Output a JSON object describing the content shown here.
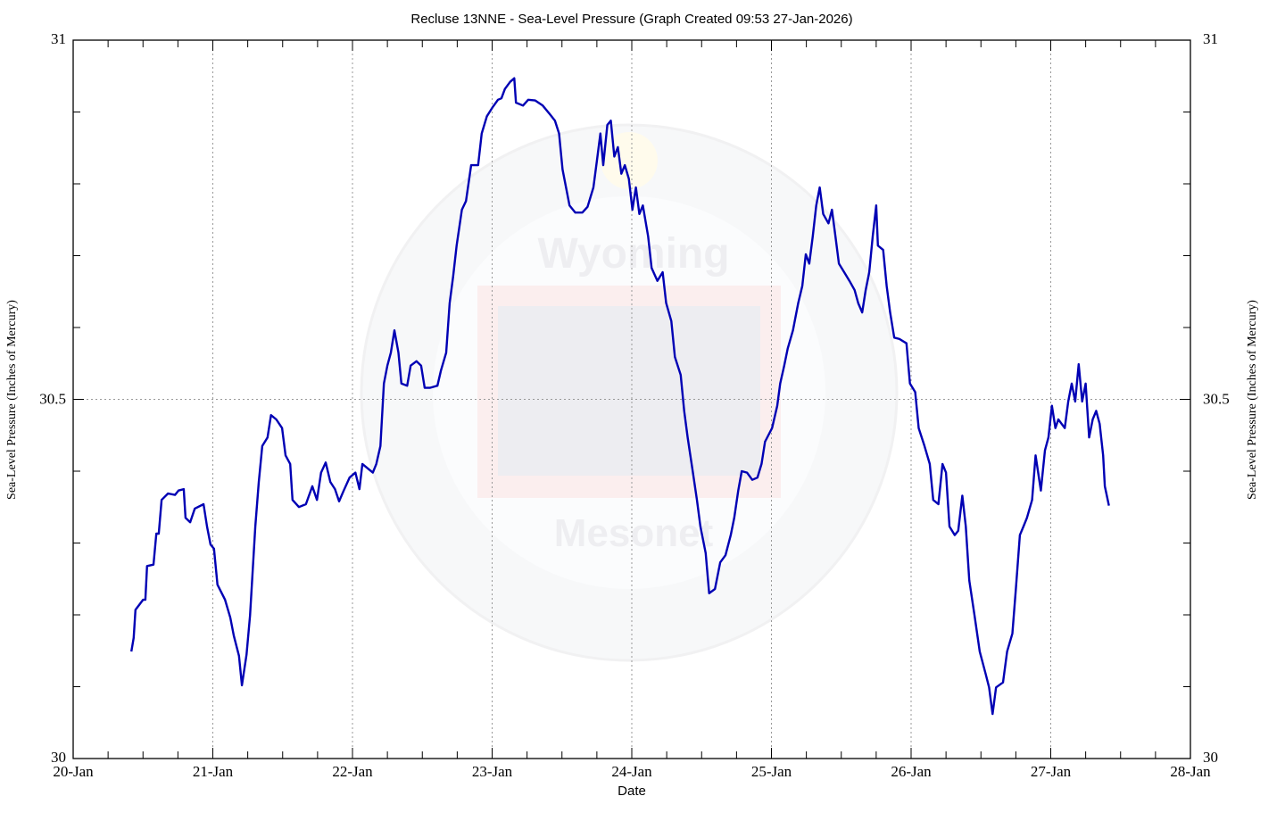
{
  "chart_data": {
    "type": "line",
    "title": "Recluse 13NNE - Sea-Level Pressure (Graph Created 09:53 27-Jan-2026)",
    "xlabel": "Date",
    "ylabel": "Sea-Level Pressure (Inches of Mercury)",
    "ylabel_right": "Sea-Level Pressure (Inches of Mercury)",
    "x_unit": "hours since 20-Jan 00:00",
    "xlim": [
      0,
      192
    ],
    "ylim": [
      30,
      31
    ],
    "x_ticks": [
      {
        "hour": 0,
        "label": "20-Jan"
      },
      {
        "hour": 24,
        "label": "21-Jan"
      },
      {
        "hour": 48,
        "label": "22-Jan"
      },
      {
        "hour": 72,
        "label": "23-Jan"
      },
      {
        "hour": 96,
        "label": "24-Jan"
      },
      {
        "hour": 120,
        "label": "25-Jan"
      },
      {
        "hour": 144,
        "label": "26-Jan"
      },
      {
        "hour": 168,
        "label": "27-Jan"
      },
      {
        "hour": 192,
        "label": "28-Jan"
      }
    ],
    "y_ticks": [
      {
        "value": 30,
        "label": "30"
      },
      {
        "value": 30.5,
        "label": "30.5"
      },
      {
        "value": 31,
        "label": "31"
      }
    ],
    "grid": "vertical at each day, horizontal at 30.5 (dotted)",
    "watermark": "Wyoming Mesonet",
    "series": [
      {
        "name": "Sea-Level Pressure",
        "color": "#0000b4",
        "points": [
          [
            10.0,
            30.149
          ],
          [
            10.4,
            30.168
          ],
          [
            10.7,
            30.207
          ],
          [
            12.0,
            30.221
          ],
          [
            12.4,
            30.221
          ],
          [
            12.7,
            30.268
          ],
          [
            13.8,
            30.27
          ],
          [
            14.3,
            30.313
          ],
          [
            14.7,
            30.313
          ],
          [
            15.2,
            30.36
          ],
          [
            16.3,
            30.369
          ],
          [
            17.5,
            30.367
          ],
          [
            18.1,
            30.373
          ],
          [
            19.0,
            30.375
          ],
          [
            19.3,
            30.335
          ],
          [
            20.1,
            30.329
          ],
          [
            20.9,
            30.348
          ],
          [
            22.4,
            30.354
          ],
          [
            23.0,
            30.323
          ],
          [
            23.6,
            30.298
          ],
          [
            24.2,
            30.292
          ],
          [
            24.8,
            30.242
          ],
          [
            26.1,
            30.221
          ],
          [
            27.0,
            30.196
          ],
          [
            27.6,
            30.171
          ],
          [
            28.5,
            30.143
          ],
          [
            29.0,
            30.102
          ],
          [
            29.8,
            30.145
          ],
          [
            30.4,
            30.199
          ],
          [
            31.3,
            30.323
          ],
          [
            31.9,
            30.385
          ],
          [
            32.5,
            30.435
          ],
          [
            33.4,
            30.447
          ],
          [
            34.0,
            30.478
          ],
          [
            34.9,
            30.472
          ],
          [
            35.9,
            30.46
          ],
          [
            36.5,
            30.422
          ],
          [
            37.3,
            30.41
          ],
          [
            37.7,
            30.36
          ],
          [
            38.8,
            30.35
          ],
          [
            40.0,
            30.354
          ],
          [
            41.1,
            30.379
          ],
          [
            41.9,
            30.36
          ],
          [
            42.6,
            30.398
          ],
          [
            43.4,
            30.412
          ],
          [
            44.2,
            30.385
          ],
          [
            45.0,
            30.375
          ],
          [
            45.7,
            30.358
          ],
          [
            46.5,
            30.373
          ],
          [
            47.5,
            30.391
          ],
          [
            48.5,
            30.398
          ],
          [
            49.2,
            30.375
          ],
          [
            49.7,
            30.41
          ],
          [
            50.6,
            30.404
          ],
          [
            51.5,
            30.398
          ],
          [
            52.1,
            30.41
          ],
          [
            52.8,
            30.435
          ],
          [
            53.4,
            30.522
          ],
          [
            54.0,
            30.547
          ],
          [
            54.6,
            30.565
          ],
          [
            55.2,
            30.596
          ],
          [
            55.9,
            30.565
          ],
          [
            56.4,
            30.522
          ],
          [
            57.4,
            30.519
          ],
          [
            58.0,
            30.547
          ],
          [
            59.0,
            30.553
          ],
          [
            59.8,
            30.547
          ],
          [
            60.4,
            30.516
          ],
          [
            61.3,
            30.516
          ],
          [
            62.6,
            30.519
          ],
          [
            63.2,
            30.54
          ],
          [
            64.1,
            30.565
          ],
          [
            64.7,
            30.634
          ],
          [
            65.3,
            30.671
          ],
          [
            65.9,
            30.714
          ],
          [
            66.8,
            30.764
          ],
          [
            67.5,
            30.776
          ],
          [
            68.4,
            30.826
          ],
          [
            69.6,
            30.826
          ],
          [
            70.2,
            30.87
          ],
          [
            71.1,
            30.894
          ],
          [
            72.1,
            30.907
          ],
          [
            73.0,
            30.917
          ],
          [
            73.6,
            30.919
          ],
          [
            74.2,
            30.932
          ],
          [
            75.1,
            30.942
          ],
          [
            75.8,
            30.947
          ],
          [
            76.1,
            30.913
          ],
          [
            77.3,
            30.909
          ],
          [
            78.2,
            30.917
          ],
          [
            79.4,
            30.916
          ],
          [
            80.7,
            30.909
          ],
          [
            81.9,
            30.897
          ],
          [
            82.8,
            30.888
          ],
          [
            83.5,
            30.87
          ],
          [
            84.1,
            30.82
          ],
          [
            84.7,
            30.795
          ],
          [
            85.3,
            30.77
          ],
          [
            86.3,
            30.76
          ],
          [
            87.5,
            30.76
          ],
          [
            88.4,
            30.768
          ],
          [
            89.4,
            30.795
          ],
          [
            90.0,
            30.832
          ],
          [
            90.6,
            30.87
          ],
          [
            91.1,
            30.826
          ],
          [
            91.8,
            30.882
          ],
          [
            92.4,
            30.888
          ],
          [
            93.0,
            30.838
          ],
          [
            93.6,
            30.851
          ],
          [
            94.2,
            30.814
          ],
          [
            94.8,
            30.826
          ],
          [
            95.5,
            30.807
          ],
          [
            96.1,
            30.764
          ],
          [
            96.7,
            30.795
          ],
          [
            97.3,
            30.758
          ],
          [
            97.9,
            30.77
          ],
          [
            98.8,
            30.727
          ],
          [
            99.4,
            30.683
          ],
          [
            100.4,
            30.665
          ],
          [
            101.3,
            30.677
          ],
          [
            101.9,
            30.634
          ],
          [
            102.8,
            30.609
          ],
          [
            103.4,
            30.559
          ],
          [
            104.4,
            30.534
          ],
          [
            105.0,
            30.484
          ],
          [
            105.6,
            30.447
          ],
          [
            106.5,
            30.398
          ],
          [
            107.2,
            30.36
          ],
          [
            107.8,
            30.323
          ],
          [
            108.7,
            30.286
          ],
          [
            109.3,
            30.23
          ],
          [
            110.3,
            30.236
          ],
          [
            111.2,
            30.273
          ],
          [
            112.1,
            30.283
          ],
          [
            113.0,
            30.311
          ],
          [
            113.6,
            30.335
          ],
          [
            114.3,
            30.373
          ],
          [
            114.9,
            30.4
          ],
          [
            115.8,
            30.398
          ],
          [
            116.7,
            30.388
          ],
          [
            117.6,
            30.391
          ],
          [
            118.3,
            30.41
          ],
          [
            118.9,
            30.441
          ],
          [
            120.1,
            30.46
          ],
          [
            121.0,
            30.491
          ],
          [
            121.5,
            30.522
          ],
          [
            122.2,
            30.547
          ],
          [
            122.8,
            30.571
          ],
          [
            123.7,
            30.596
          ],
          [
            124.6,
            30.634
          ],
          [
            125.3,
            30.658
          ],
          [
            125.9,
            30.702
          ],
          [
            126.5,
            30.689
          ],
          [
            127.1,
            30.727
          ],
          [
            127.7,
            30.77
          ],
          [
            128.3,
            30.795
          ],
          [
            128.9,
            30.758
          ],
          [
            129.8,
            30.745
          ],
          [
            130.4,
            30.764
          ],
          [
            131.0,
            30.727
          ],
          [
            131.6,
            30.689
          ],
          [
            132.5,
            30.677
          ],
          [
            133.4,
            30.665
          ],
          [
            134.3,
            30.652
          ],
          [
            134.9,
            30.634
          ],
          [
            135.6,
            30.621
          ],
          [
            136.2,
            30.652
          ],
          [
            136.8,
            30.677
          ],
          [
            137.4,
            30.727
          ],
          [
            138.0,
            30.77
          ],
          [
            138.3,
            30.714
          ],
          [
            139.2,
            30.708
          ],
          [
            139.8,
            30.658
          ],
          [
            140.4,
            30.621
          ],
          [
            141.1,
            30.586
          ],
          [
            142.0,
            30.584
          ],
          [
            143.2,
            30.578
          ],
          [
            143.8,
            30.522
          ],
          [
            144.7,
            30.51
          ],
          [
            145.3,
            30.46
          ],
          [
            146.3,
            30.435
          ],
          [
            147.2,
            30.41
          ],
          [
            147.8,
            30.36
          ],
          [
            148.7,
            30.354
          ],
          [
            149.4,
            30.41
          ],
          [
            150.0,
            30.398
          ],
          [
            150.6,
            30.323
          ],
          [
            151.5,
            30.311
          ],
          [
            152.1,
            30.317
          ],
          [
            152.8,
            30.366
          ],
          [
            153.4,
            30.323
          ],
          [
            154.0,
            30.248
          ],
          [
            154.9,
            30.199
          ],
          [
            155.8,
            30.149
          ],
          [
            156.8,
            30.118
          ],
          [
            157.4,
            30.099
          ],
          [
            158.0,
            30.062
          ],
          [
            158.6,
            30.099
          ],
          [
            159.8,
            30.106
          ],
          [
            160.5,
            30.149
          ],
          [
            161.4,
            30.174
          ],
          [
            162.0,
            30.236
          ],
          [
            162.7,
            30.311
          ],
          [
            163.3,
            30.323
          ],
          [
            163.9,
            30.335
          ],
          [
            164.8,
            30.36
          ],
          [
            165.4,
            30.422
          ],
          [
            166.3,
            30.373
          ],
          [
            167.0,
            30.429
          ],
          [
            167.6,
            30.447
          ],
          [
            168.2,
            30.491
          ],
          [
            168.8,
            30.46
          ],
          [
            169.3,
            30.472
          ],
          [
            170.4,
            30.46
          ],
          [
            171.0,
            30.497
          ],
          [
            171.6,
            30.522
          ],
          [
            172.2,
            30.497
          ],
          [
            172.8,
            30.549
          ],
          [
            173.4,
            30.497
          ],
          [
            174.0,
            30.522
          ],
          [
            174.6,
            30.447
          ],
          [
            175.2,
            30.472
          ],
          [
            175.8,
            30.484
          ],
          [
            176.4,
            30.466
          ],
          [
            177.0,
            30.422
          ],
          [
            177.3,
            30.379
          ],
          [
            178.0,
            30.352
          ]
        ]
      }
    ]
  }
}
